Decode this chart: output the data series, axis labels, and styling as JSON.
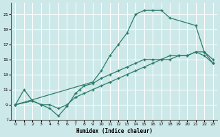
{
  "xlabel": "Humidex (Indice chaleur)",
  "bg_color": "#cce8e8",
  "line_color": "#2a7a6a",
  "grid_color": "#b8d8d8",
  "xlim": [
    -0.5,
    23.5
  ],
  "ylim": [
    7,
    22.5
  ],
  "xticks": [
    0,
    1,
    2,
    3,
    4,
    5,
    6,
    7,
    8,
    9,
    10,
    11,
    12,
    13,
    14,
    15,
    16,
    17,
    18,
    19,
    20,
    21,
    22,
    23
  ],
  "yticks": [
    7,
    9,
    11,
    13,
    15,
    17,
    19,
    21
  ],
  "curve_upper_x": [
    0,
    9,
    10,
    11,
    12,
    13,
    14,
    15,
    16,
    17,
    18,
    21,
    22,
    23
  ],
  "curve_upper_y": [
    9,
    12,
    13.5,
    15.5,
    17,
    18.5,
    21,
    21.5,
    21.5,
    21.5,
    20.5,
    19.5,
    16,
    14.5
  ],
  "curve_zigzag_x": [
    0,
    1,
    2,
    3,
    4,
    5,
    6,
    7,
    7.5,
    8,
    9,
    10,
    11,
    12,
    13,
    14,
    15,
    16,
    17,
    18,
    19,
    20,
    21,
    22,
    23
  ],
  "curve_zigzag_y": [
    9,
    11,
    9.5,
    9,
    8.5,
    7.5,
    8.8,
    10.5,
    11,
    11.5,
    11.8,
    12.5,
    13,
    13.5,
    14,
    14.5,
    15,
    15,
    15,
    15.5,
    15.5,
    15.5,
    16,
    16,
    15
  ],
  "curve_linear_x": [
    0,
    2,
    3,
    4,
    5,
    6,
    7,
    8,
    9,
    10,
    11,
    12,
    13,
    14,
    15,
    16,
    17,
    18,
    19,
    20,
    21,
    22,
    23
  ],
  "curve_linear_y": [
    9,
    9.5,
    9,
    9,
    8.5,
    9,
    10,
    10.5,
    11,
    11.5,
    12,
    12.5,
    13,
    13.5,
    14,
    14.5,
    15,
    15,
    15.5,
    15.5,
    16,
    15.5,
    14.5
  ]
}
